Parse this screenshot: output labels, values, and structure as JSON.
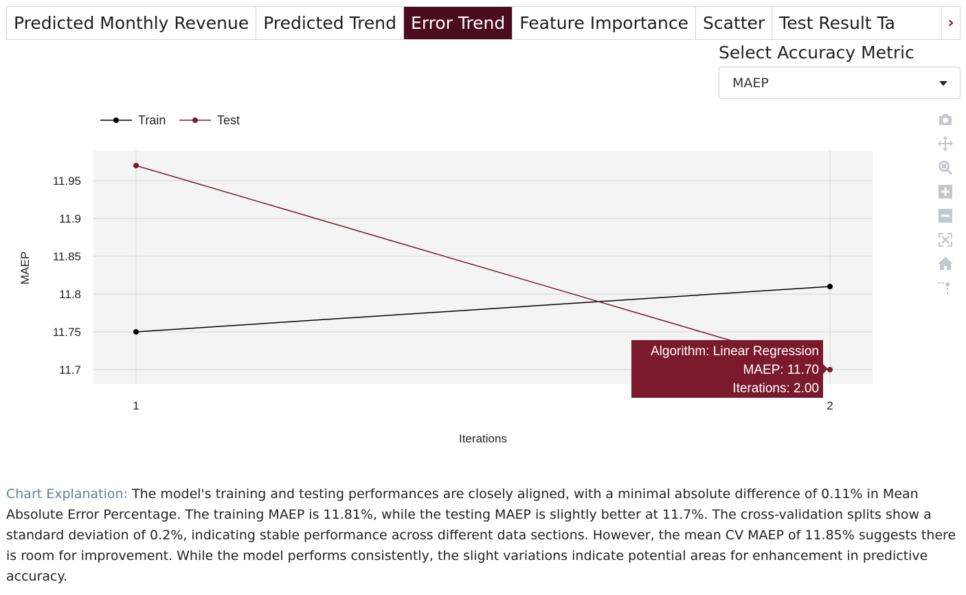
{
  "tabs": [
    {
      "label": "Predicted Monthly Revenue",
      "active": false
    },
    {
      "label": "Predicted Trend",
      "active": false
    },
    {
      "label": "Error Trend",
      "active": true
    },
    {
      "label": "Feature Importance",
      "active": false
    },
    {
      "label": "Scatter",
      "active": false
    },
    {
      "label": "Test Result Table",
      "active": false
    }
  ],
  "metric": {
    "label": "Select Accuracy Metric",
    "selected": "MAEP"
  },
  "modebar_icons": [
    "camera-icon",
    "pan-icon",
    "zoom-icon",
    "zoom-in-icon",
    "zoom-out-icon",
    "autoscale-icon",
    "home-icon",
    "spike-lines-icon"
  ],
  "chart_data": {
    "type": "line",
    "xlabel": "Iterations",
    "ylabel": "MAEP",
    "x": [
      1,
      2
    ],
    "x_ticks": [
      "1",
      "2"
    ],
    "ylim": [
      11.68,
      11.99
    ],
    "y_ticks": [
      "11.7",
      "11.75",
      "11.8",
      "11.85",
      "11.9",
      "11.95"
    ],
    "y_tick_values": [
      11.7,
      11.75,
      11.8,
      11.85,
      11.9,
      11.95
    ],
    "legend_position": "top-left",
    "series": [
      {
        "name": "Train",
        "values": [
          11.75,
          11.81
        ],
        "color": "#000000"
      },
      {
        "name": "Test",
        "values": [
          11.97,
          11.7
        ],
        "color": "#7a1a2c"
      }
    ],
    "tooltip": {
      "line1": "Algorithm: Linear Regression",
      "line2": "MAEP: 11.70",
      "line3": "Iterations: 2.00",
      "color": "#7a1a2c"
    }
  },
  "explanation": {
    "label": "Chart Explanation:",
    "text": " The model's training and testing performances are closely aligned, with a minimal absolute difference of 0.11% in Mean Absolute Error Percentage. The training MAEP is 11.81%, while the testing MAEP is slightly better at 11.7%. The cross-validation splits show a standard deviation of 0.2%, indicating stable performance across different data sections. However, the mean CV MAEP of 11.85% suggests there is room for improvement. While the model performs consistently, the slight variations indicate potential areas for enhancement in predictive accuracy."
  }
}
